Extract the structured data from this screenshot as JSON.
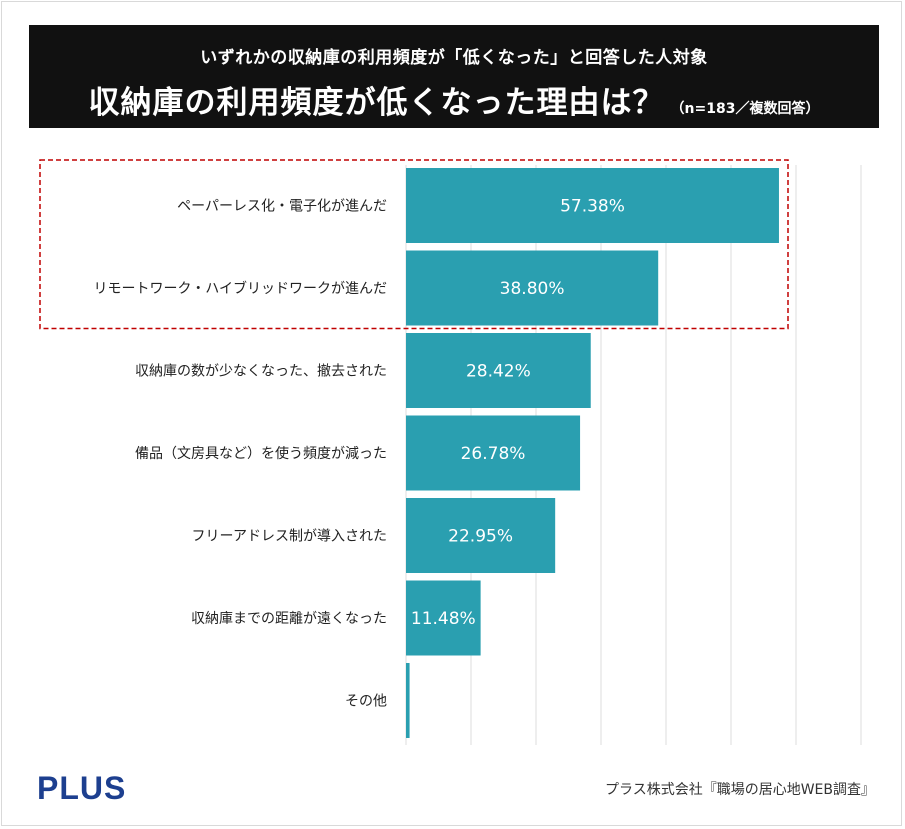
{
  "header": {
    "subtitle": "いずれかの収納庫の利用頻度が「低くなった」と回答した人対象",
    "title": "収納庫の利用頻度が低くなった理由は？",
    "note": "（n=183／複数回答）"
  },
  "chart_data": {
    "type": "bar",
    "orientation": "horizontal",
    "title": "収納庫の利用頻度が低くなった理由は？",
    "subtitle": "いずれかの収納庫の利用頻度が「低くなった」と回答した人対象",
    "categories": [
      "ペーパーレス化・電子化が進んだ",
      "リモートワーク・ハイブリッドワークが進んだ",
      "収納庫の数が少なくなった、撤去された",
      "備品（文房具など）を使う頻度が減った",
      "フリーアドレス制が導入された",
      "収納庫までの距離が遠くなった",
      "その他"
    ],
    "values": [
      57.38,
      38.8,
      28.42,
      26.78,
      22.95,
      11.48,
      0.55
    ],
    "value_labels": [
      "57.38%",
      "38.80%",
      "28.42%",
      "26.78%",
      "22.95%",
      "11.48%",
      ""
    ],
    "unit": "%",
    "xlim": [
      0,
      70
    ],
    "grid_step": 10,
    "grid": true,
    "highlight_indices": [
      0,
      1
    ],
    "bar_color": "#2a9fb0",
    "highlight_border_color": "#c00000"
  },
  "footer": {
    "logo": "PLUS",
    "source": "プラス株式会社『職場の居心地WEB調査』"
  }
}
